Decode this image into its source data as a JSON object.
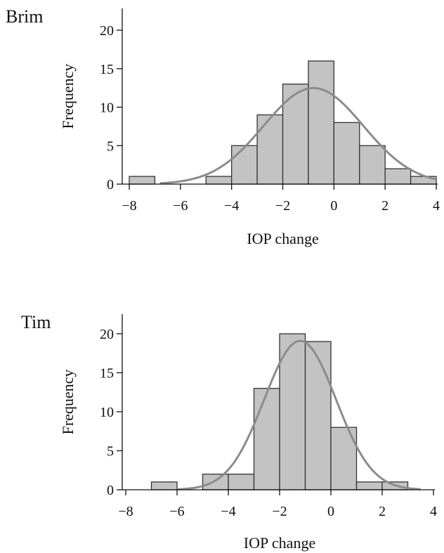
{
  "colors": {
    "bar_fill": "#c3c3c3",
    "bar_stroke": "#333333",
    "curve": "#8c8c8c",
    "axis": "#111111",
    "text": "#111111"
  },
  "chart_data": [
    {
      "type": "bar",
      "title": "Brim",
      "xlabel": "IOP change",
      "ylabel": "Frequency",
      "xlim": [
        -8,
        4
      ],
      "ylim": [
        0,
        22
      ],
      "xticks": [
        -8,
        -6,
        -4,
        -2,
        0,
        2,
        4
      ],
      "yticks": [
        0,
        5,
        10,
        15,
        20
      ],
      "grid": false,
      "bin_width": 1,
      "bin_starts": [
        -8,
        -7,
        -6,
        -5,
        -4,
        -3,
        -2,
        -1,
        0,
        1,
        2,
        3
      ],
      "values": [
        1,
        0,
        0,
        1,
        5,
        9,
        13,
        16,
        8,
        5,
        2,
        1
      ],
      "normal_fit": {
        "mean": -0.8,
        "sd": 1.95,
        "x_range": [
          -6.8,
          4
        ]
      }
    },
    {
      "type": "bar",
      "title": "Tim",
      "xlabel": "IOP change",
      "ylabel": "Frequency",
      "xlim": [
        -8,
        4
      ],
      "ylim": [
        0,
        22
      ],
      "xticks": [
        -8,
        -6,
        -4,
        -2,
        0,
        2,
        4
      ],
      "yticks": [
        0,
        5,
        10,
        15,
        20
      ],
      "grid": false,
      "bin_width": 1,
      "bin_starts": [
        -7,
        -6,
        -5,
        -4,
        -3,
        -2,
        -1,
        0,
        1,
        2
      ],
      "values": [
        1,
        0,
        2,
        2,
        13,
        20,
        19,
        8,
        1,
        1
      ],
      "normal_fit": {
        "mean": -1.2,
        "sd": 1.4,
        "x_range": [
          -6,
          3.5
        ]
      }
    }
  ]
}
